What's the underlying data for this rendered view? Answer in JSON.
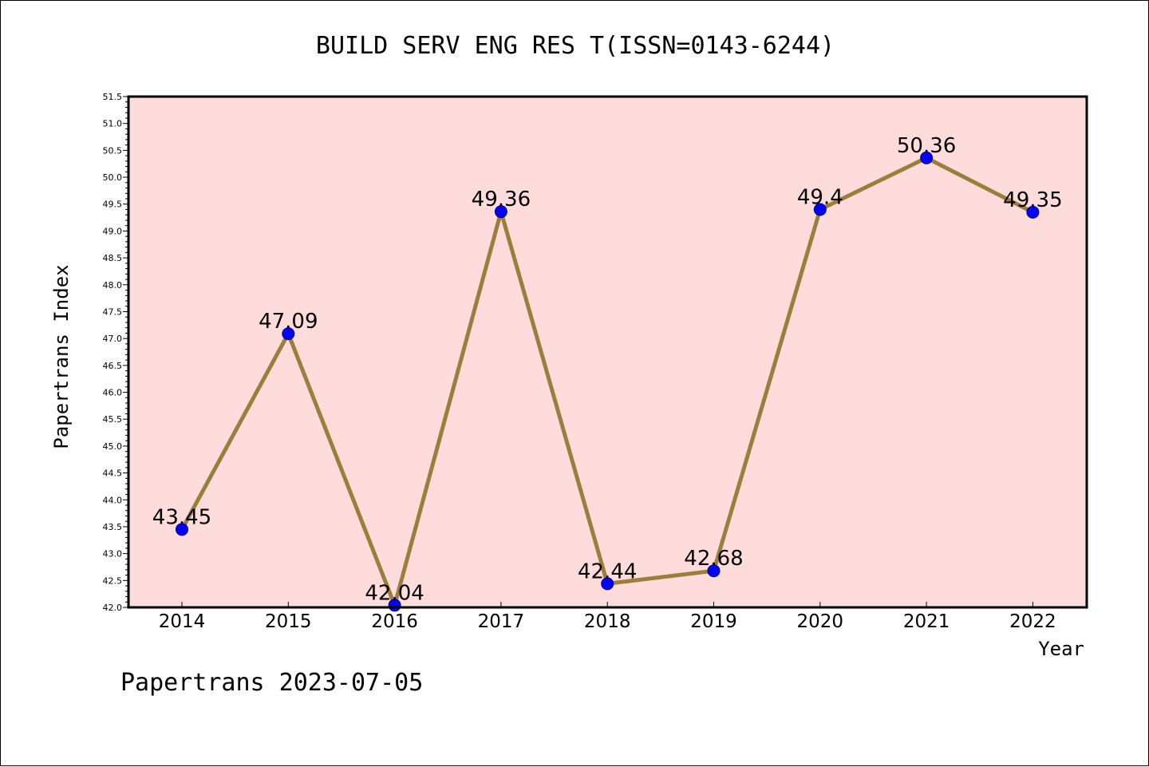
{
  "chart_data": {
    "type": "line",
    "title": "BUILD SERV ENG RES T(ISSN=0143-6244)",
    "xlabel": "Year",
    "ylabel": "Papertrans Index",
    "categories": [
      "2014",
      "2015",
      "2016",
      "2017",
      "2018",
      "2019",
      "2020",
      "2021",
      "2022"
    ],
    "series": [
      {
        "values": [
          43.45,
          47.09,
          42.04,
          49.36,
          42.44,
          42.68,
          49.4,
          50.36,
          49.35
        ],
        "labels": [
          "43.45",
          "47.09",
          "42.04",
          "49.36",
          "42.44",
          "42.68",
          "49.4",
          "50.36",
          "49.35"
        ]
      }
    ],
    "ylim": [
      42.0,
      51.5
    ],
    "yticks": [
      "42.0",
      "42.5",
      "43.0",
      "43.5",
      "44.0",
      "44.5",
      "45.0",
      "45.5",
      "46.0",
      "46.5",
      "47.0",
      "47.5",
      "48.0",
      "48.5",
      "49.0",
      "49.5",
      "50.0",
      "50.5",
      "51.0",
      "51.5"
    ],
    "grid": false,
    "legend": "none",
    "colors": {
      "plot_background": "#ffdcdc",
      "line": "#9a7e3a",
      "marker": "#0000ff"
    }
  },
  "footer": "Papertrans 2023-07-05"
}
